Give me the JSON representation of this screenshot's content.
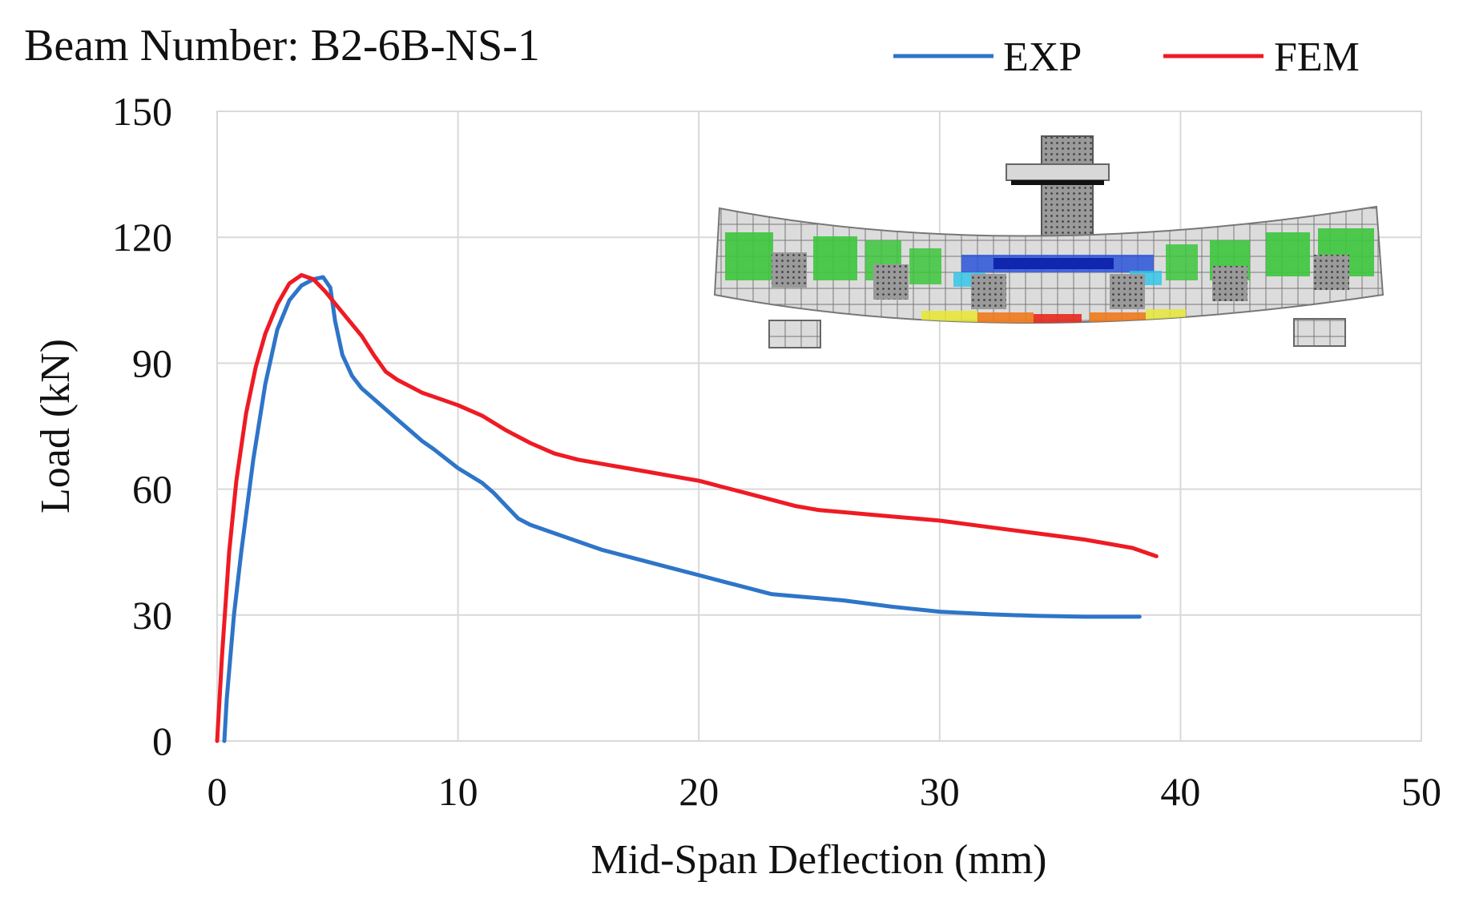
{
  "chart_data": {
    "type": "line",
    "title": "Beam Number: B2-6B-NS-1",
    "xlabel": "Mid-Span Deflection (mm)",
    "ylabel": "Load (kN)",
    "xlim": [
      0,
      50
    ],
    "ylim": [
      0,
      150
    ],
    "xticks": [
      "0",
      "10",
      "20",
      "30",
      "40",
      "50"
    ],
    "yticks": [
      "0",
      "30",
      "60",
      "90",
      "120",
      "150"
    ],
    "grid": true,
    "legend_position": "top-right",
    "series": [
      {
        "name": "EXP",
        "color": "#2E75C8",
        "x": [
          0.3,
          0.4,
          0.7,
          1.0,
          1.5,
          2.0,
          2.5,
          3.0,
          3.5,
          4.0,
          4.4,
          4.7,
          4.9,
          5.2,
          5.6,
          6.0,
          6.5,
          7.0,
          7.5,
          8.0,
          8.5,
          9.0,
          10.0,
          11.0,
          11.5,
          12.0,
          12.5,
          13.0,
          14.0,
          15.0,
          16.0,
          17.0,
          18.0,
          19.0,
          20.0,
          21.0,
          22.0,
          23.0,
          24.0,
          26.0,
          28.0,
          30.0,
          32.0,
          34.0,
          36.0,
          38.3
        ],
        "y": [
          0,
          10,
          30,
          45,
          67,
          85,
          98,
          105,
          108.5,
          110,
          110.5,
          108,
          100,
          92,
          87,
          84,
          81.5,
          79,
          76.5,
          74,
          71.5,
          69.5,
          65,
          61.5,
          59,
          56,
          53,
          51.5,
          49.5,
          47.5,
          45.5,
          44,
          42.5,
          41,
          39.5,
          38,
          36.5,
          35,
          34.5,
          33.5,
          32,
          30.8,
          30.2,
          29.8,
          29.6,
          29.6
        ]
      },
      {
        "name": "FEM",
        "color": "#EE1B24",
        "x": [
          0.0,
          0.2,
          0.5,
          0.8,
          1.2,
          1.6,
          2.0,
          2.5,
          3.0,
          3.5,
          4.0,
          4.5,
          5.0,
          5.5,
          6.0,
          6.5,
          7.0,
          7.5,
          8.0,
          8.5,
          9.0,
          10.0,
          11.0,
          12.0,
          13.0,
          14.0,
          15.0,
          16.0,
          17.0,
          18.0,
          19.0,
          20.0,
          21.0,
          22.0,
          23.0,
          24.0,
          25.0,
          26.0,
          28.0,
          30.0,
          32.0,
          34.0,
          36.0,
          38.0,
          39.0
        ],
        "y": [
          0,
          20,
          45,
          62,
          78,
          89,
          97,
          104,
          109,
          111,
          110,
          107,
          103.5,
          100,
          96.5,
          92,
          88,
          86,
          84.5,
          83,
          82,
          80,
          77.5,
          74,
          71,
          68.5,
          67,
          66,
          65,
          64,
          63,
          62,
          60.5,
          59,
          57.5,
          56,
          55,
          54.5,
          53.5,
          52.5,
          51,
          49.5,
          48,
          46,
          44
        ]
      }
    ]
  }
}
